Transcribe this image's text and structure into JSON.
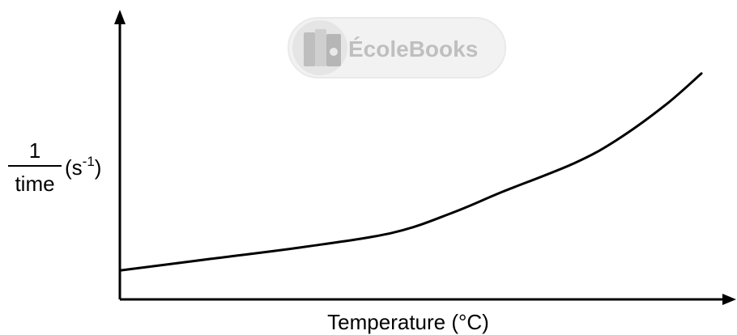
{
  "watermark": {
    "brand": "ÉcoleBooks",
    "badge_color": "#9e9e9e",
    "icon": "books-icon"
  },
  "chart_data": {
    "type": "line",
    "title": "",
    "xlabel": "Temperature (°C)",
    "ylabel": {
      "numerator": "1",
      "denominator": "time",
      "unit": "(s",
      "unit_exponent": "-1",
      "unit_close": ")"
    },
    "xlim": [
      0,
      100
    ],
    "ylim": [
      0,
      100
    ],
    "x_ticks_shown": false,
    "y_ticks_shown": false,
    "grid": false,
    "series": [
      {
        "x": [
          0,
          15,
          30,
          45,
          55,
          63,
          75,
          82,
          90,
          96
        ],
        "y": [
          10,
          14,
          18,
          23,
          30,
          37,
          47,
          55,
          67,
          78
        ],
        "color": "#000000"
      }
    ]
  }
}
